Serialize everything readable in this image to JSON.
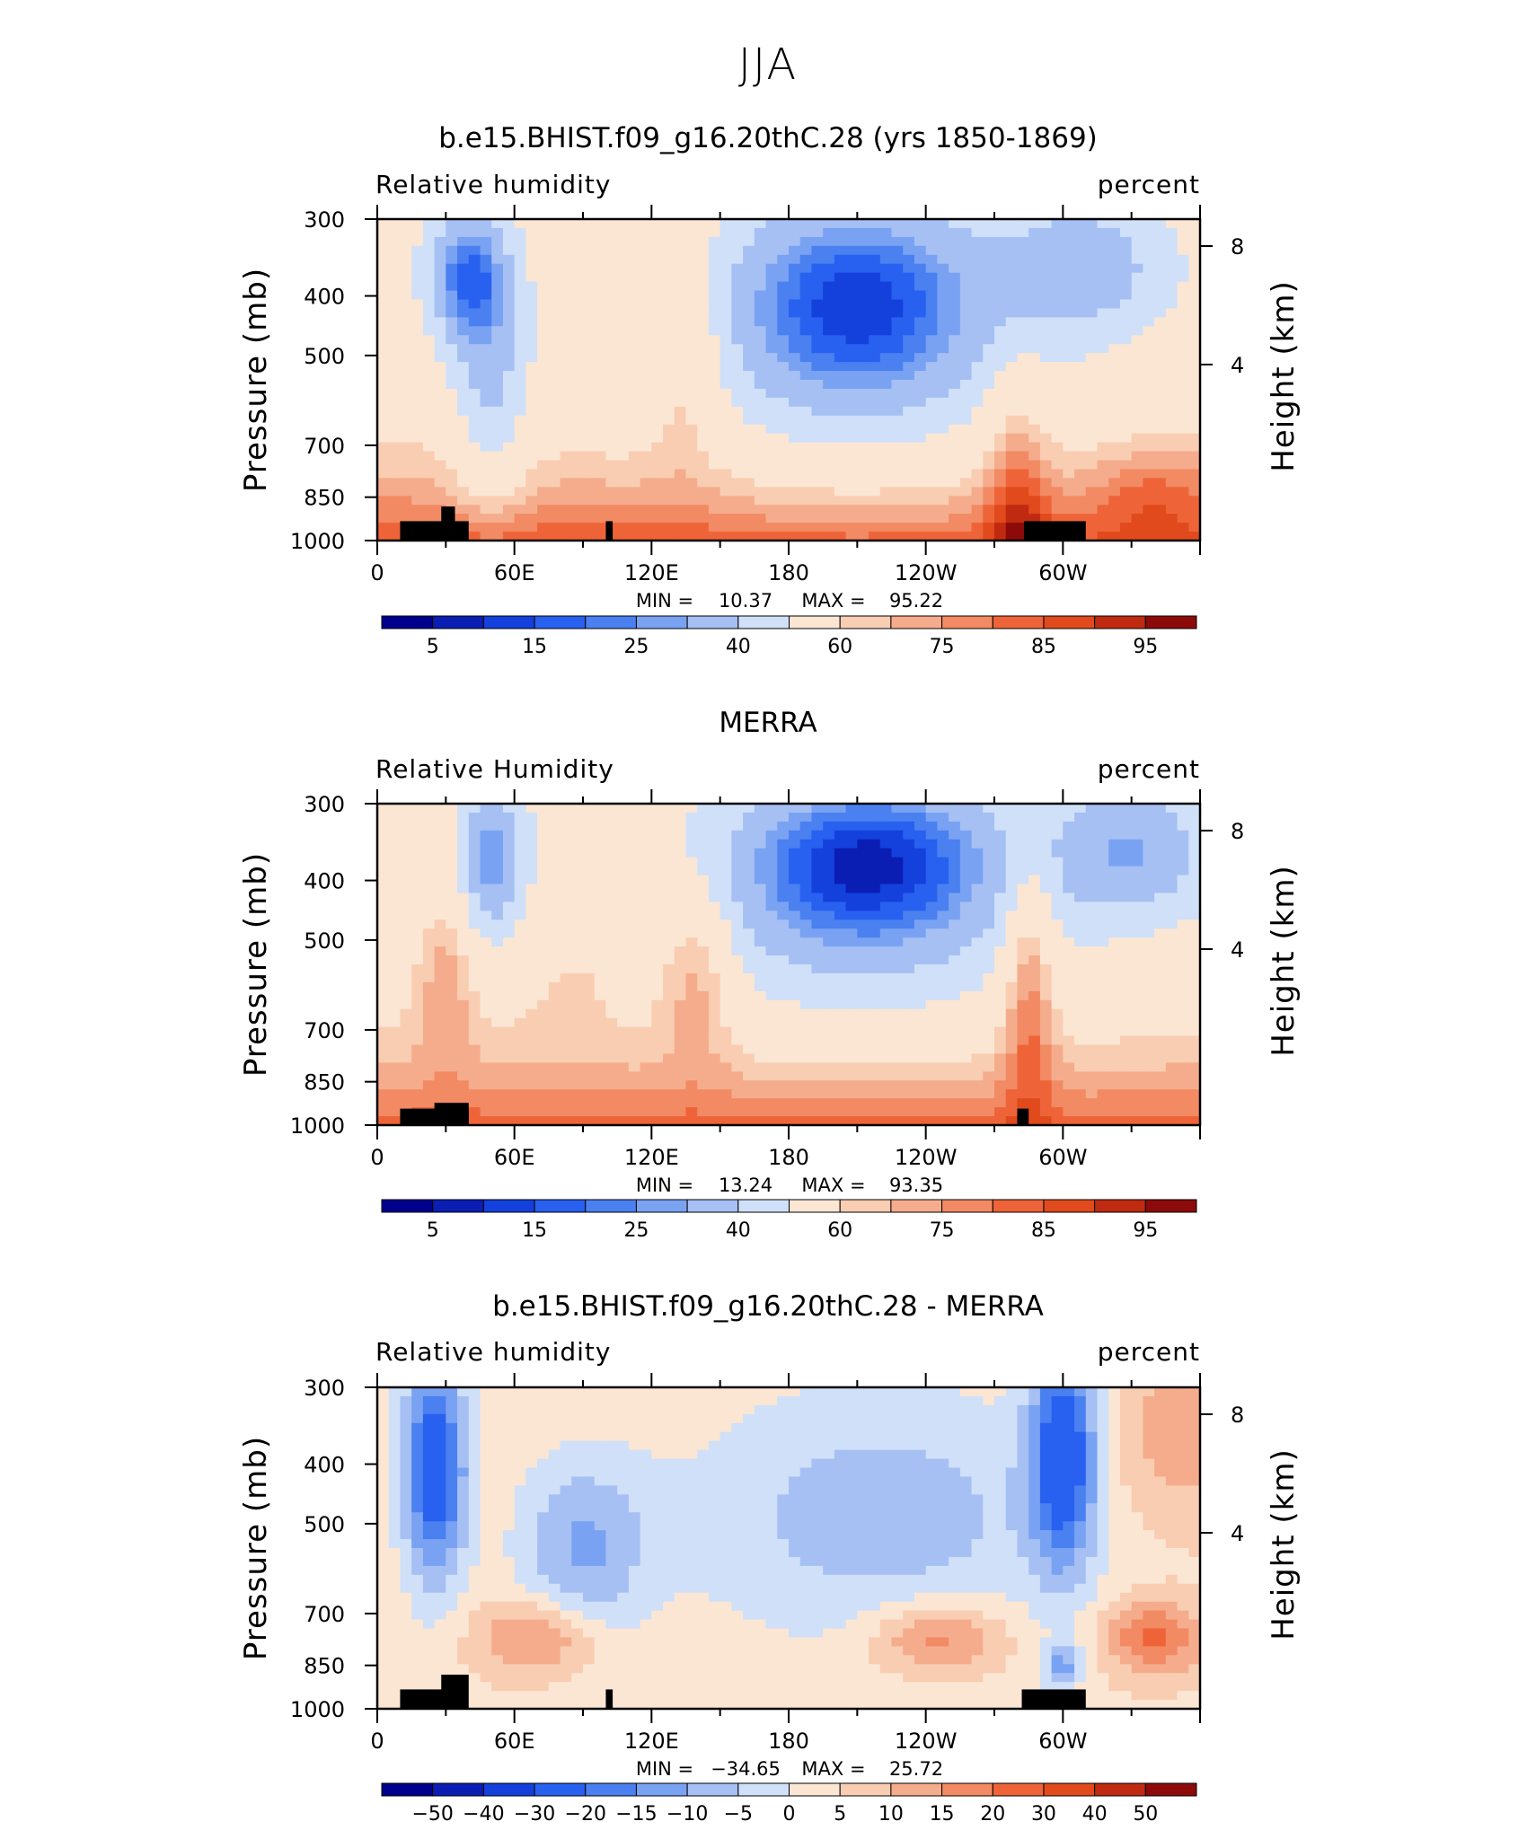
{
  "figure": {
    "season_title": "JJA"
  },
  "chart_data": [
    {
      "type": "heatmap",
      "title": "b.e15.BHIST.f09_g16.20thC.28 (yrs 1850-1869)",
      "left_label": "Relative humidity",
      "right_label": "percent",
      "ylabel": "Pressure (mb)",
      "ylabel_right": "Height (km)",
      "yticks": [
        300,
        400,
        500,
        700,
        850,
        1000
      ],
      "yticks_right": [
        8,
        4
      ],
      "xticks": [
        "0",
        "60E",
        "120E",
        "180",
        "120W",
        "60W"
      ],
      "xlim": [
        0,
        360
      ],
      "ylim": [
        1000,
        300
      ],
      "min_label": "MIN =",
      "min_value": "10.37",
      "max_label": "MAX =",
      "max_value": "95.22",
      "colorbar_labels": [
        "5",
        "15",
        "25",
        "40",
        "60",
        "75",
        "85",
        "95"
      ],
      "levels": [
        5,
        10,
        15,
        20,
        25,
        30,
        40,
        50,
        60,
        65,
        70,
        75,
        80,
        85,
        90,
        95
      ]
    },
    {
      "type": "heatmap",
      "title": "MERRA",
      "left_label": "Relative Humidity",
      "right_label": "percent",
      "ylabel": "Pressure (mb)",
      "ylabel_right": "Height (km)",
      "yticks": [
        300,
        400,
        500,
        700,
        850,
        1000
      ],
      "yticks_right": [
        8,
        4
      ],
      "xticks": [
        "0",
        "60E",
        "120E",
        "180",
        "120W",
        "60W"
      ],
      "xlim": [
        0,
        360
      ],
      "ylim": [
        1000,
        300
      ],
      "min_label": "MIN =",
      "min_value": "13.24",
      "max_label": "MAX =",
      "max_value": "93.35",
      "colorbar_labels": [
        "5",
        "15",
        "25",
        "40",
        "60",
        "75",
        "85",
        "95"
      ],
      "levels": [
        5,
        10,
        15,
        20,
        25,
        30,
        40,
        50,
        60,
        65,
        70,
        75,
        80,
        85,
        90,
        95
      ]
    },
    {
      "type": "heatmap",
      "title": "b.e15.BHIST.f09_g16.20thC.28 - MERRA",
      "left_label": "Relative humidity",
      "right_label": "percent",
      "ylabel": "Pressure (mb)",
      "ylabel_right": "Height (km)",
      "yticks": [
        300,
        400,
        500,
        700,
        850,
        1000
      ],
      "yticks_right": [
        8,
        4
      ],
      "xticks": [
        "0",
        "60E",
        "120E",
        "180",
        "120W",
        "60W"
      ],
      "xlim": [
        0,
        360
      ],
      "ylim": [
        1000,
        300
      ],
      "min_label": "MIN =",
      "min_value": "−34.65",
      "max_label": "MAX =",
      "max_value": "25.72",
      "colorbar_labels": [
        "−50",
        "−40",
        "−30",
        "−20",
        "−15",
        "−10",
        "−5",
        "0",
        "5",
        "10",
        "15",
        "20",
        "30",
        "40",
        "50"
      ],
      "levels": [
        -50,
        -40,
        -30,
        -20,
        -15,
        -10,
        -5,
        0,
        5,
        10,
        15,
        20,
        30,
        40,
        50
      ]
    }
  ],
  "colormap": [
    "#00008c",
    "#0a1eb4",
    "#1440dc",
    "#2860f0",
    "#4a80f0",
    "#7aa2f2",
    "#a6c0f4",
    "#cfe0f8",
    "#fbe6d4",
    "#f9cdb2",
    "#f5ac8c",
    "#f28a64",
    "#ee6438",
    "#e04a1c",
    "#c02a10",
    "#8c0a0a"
  ]
}
